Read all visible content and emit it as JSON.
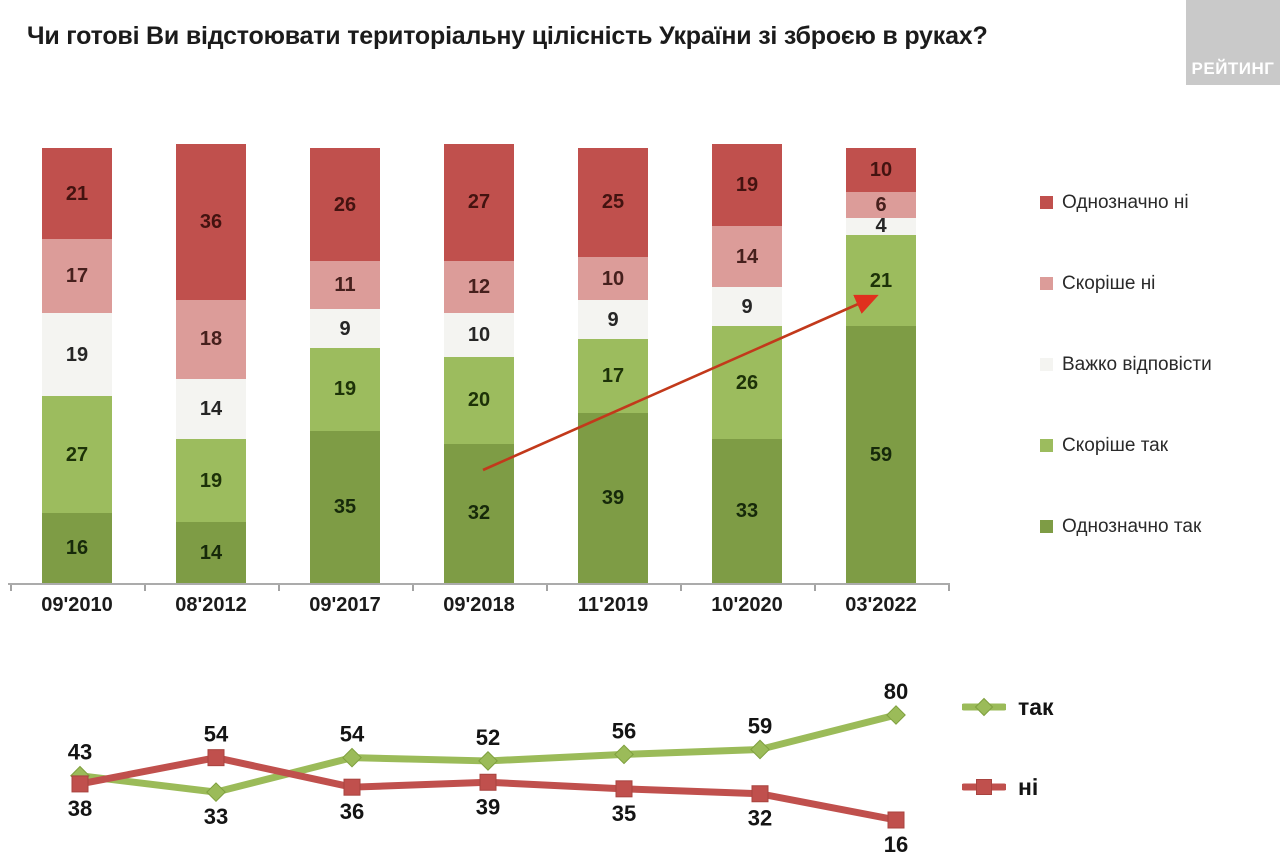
{
  "header": {
    "title": "Чи готові Ви відстоювати територіальну цілісність України зі зброєю в руках?",
    "logo_text": "РЕЙТИНГ"
  },
  "colors": {
    "definitely_no": "#c0504d",
    "rather_no": "#dc9c99",
    "hard_to_say": "#f4f4f1",
    "rather_yes": "#9cbc5e",
    "definitely_yes": "#7e9c45",
    "line_yes": "#9bbb59",
    "line_no": "#c0504d",
    "arrow": "#c2391b",
    "axis": "#ababab",
    "logo_bg": "#c9c9c9",
    "logo_text": "#ffffff"
  },
  "chart_data": [
    {
      "type": "bar",
      "stacked": true,
      "categories": [
        "09'2010",
        "08'2012",
        "09'2017",
        "09'2018",
        "11'2019",
        "10'2020",
        "03'2022"
      ],
      "series": [
        {
          "name": "Однозначно так",
          "color": "#7e9c45",
          "label_color": "#16290a",
          "values": [
            16,
            14,
            35,
            32,
            39,
            33,
            59
          ]
        },
        {
          "name": "Скоріше так",
          "color": "#9cbc5e",
          "label_color": "#1d3208",
          "values": [
            27,
            19,
            19,
            20,
            17,
            26,
            21
          ]
        },
        {
          "name": "Важко відповісти",
          "color": "#f4f4f1",
          "label_color": "#262626",
          "values": [
            19,
            14,
            9,
            10,
            9,
            9,
            4
          ]
        },
        {
          "name": "Скоріше ні",
          "color": "#dc9c99",
          "label_color": "#46201d",
          "values": [
            17,
            18,
            11,
            12,
            10,
            14,
            6
          ]
        },
        {
          "name": "Однозначно ні",
          "color": "#c0504d",
          "label_color": "#431310",
          "values": [
            21,
            36,
            26,
            27,
            25,
            19,
            10
          ]
        }
      ],
      "legend_order_top_down": [
        "Однозначно ні",
        "Скоріше ні",
        "Важко відповісти",
        "Скоріше так",
        "Однозначно так"
      ],
      "annotation": {
        "type": "arrow",
        "from_category": "09'2018",
        "to_category": "03'2022",
        "to_series": "Скоріше так",
        "to_value": 21
      }
    },
    {
      "type": "line",
      "categories": [
        "09'2010",
        "08'2012",
        "09'2017",
        "09'2018",
        "11'2019",
        "10'2020",
        "03'2022"
      ],
      "series": [
        {
          "name": "так",
          "marker": "diamond",
          "color": "#9bbb59",
          "marker_stroke": "#7fa03e",
          "values": [
            43,
            33,
            54,
            52,
            56,
            59,
            80
          ],
          "label_positions": [
            "above",
            "below",
            "above",
            "above",
            "above",
            "above",
            "above"
          ]
        },
        {
          "name": "ні",
          "marker": "square",
          "color": "#c0504d",
          "marker_stroke": "#a8433f",
          "values": [
            38,
            54,
            36,
            39,
            35,
            32,
            16
          ],
          "label_positions": [
            "below",
            "above",
            "below",
            "below",
            "below",
            "below",
            "below"
          ]
        }
      ],
      "legend_position": "right",
      "grid": false
    }
  ]
}
